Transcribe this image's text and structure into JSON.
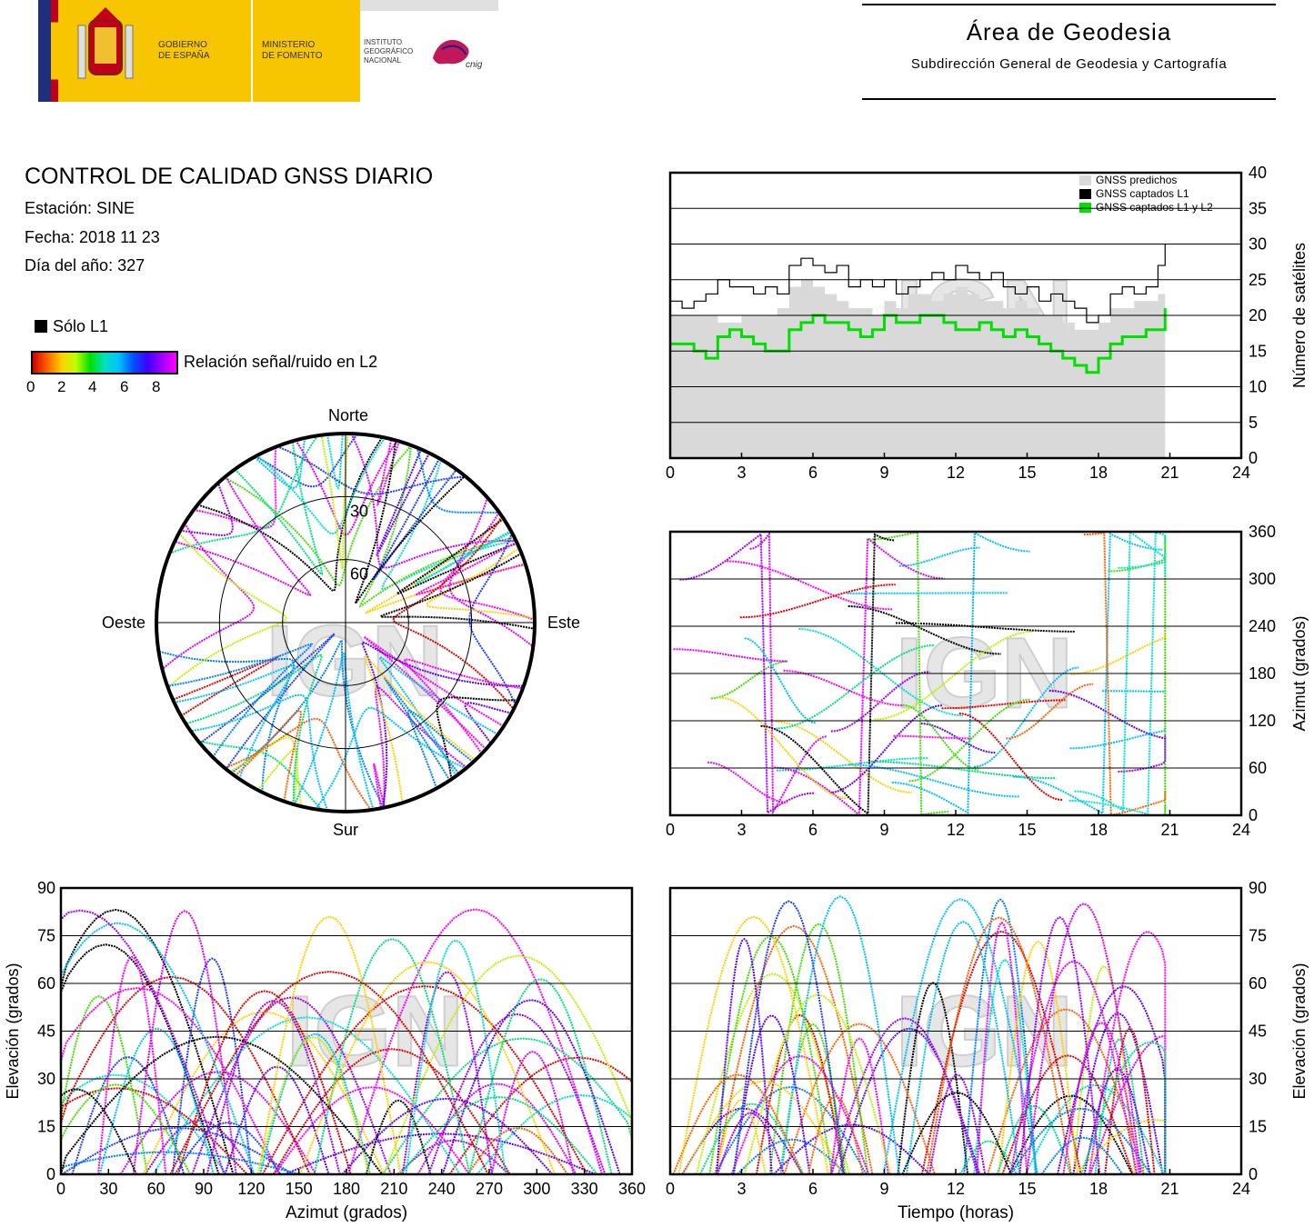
{
  "header": {
    "gov_text": [
      "GOBIERNO",
      "DE ESPAÑA"
    ],
    "ministry_text": [
      "MINISTERIO",
      "DE FOMENTO"
    ],
    "institute_text": [
      "INSTITUTO",
      "GEOGRÁFICO",
      "NACIONAL"
    ],
    "cnig_mark": "cnig",
    "area_title": "Área de Geodesia",
    "area_subtitle": "Subdirección General de Geodesia y Cartografía"
  },
  "report": {
    "title": "CONTROL DE CALIDAD GNSS DIARIO",
    "station": "Estación: SINE",
    "date": "Fecha: 2018 11 23",
    "doy": "Día del año: 327"
  },
  "legend": {
    "l1_only": "Sólo L1",
    "snr_label": "Relación señal/ruido en L2",
    "snr_ticks": [
      "0",
      "2",
      "4",
      "6",
      "8"
    ]
  },
  "watermark": "IGN",
  "chart_data": [
    {
      "id": "satellite-count",
      "type": "line",
      "ylabel": "Número de satélites",
      "xlim": [
        0,
        24
      ],
      "ylim": [
        0,
        40
      ],
      "x_ticks": [
        "0",
        "3",
        "6",
        "9",
        "12",
        "15",
        "18",
        "21",
        "24"
      ],
      "y_ticks": [
        "0",
        "5",
        "10",
        "15",
        "20",
        "25",
        "30",
        "35",
        "40"
      ],
      "legend_position": "top-right",
      "series": [
        {
          "name": "GNSS predichos",
          "color": "#d9d9d9",
          "x": [
            0,
            1,
            2,
            3,
            4,
            4.5,
            5,
            5.5,
            6,
            6.5,
            7,
            7.5,
            8,
            8.5,
            9,
            9.5,
            10,
            10.5,
            11,
            11.5,
            12,
            12.5,
            13,
            13.5,
            14,
            14.5,
            15,
            15.5,
            16,
            16.5,
            17,
            17.5,
            18,
            18.5,
            19,
            19.5,
            20,
            20.5,
            20.8
          ],
          "y": [
            20,
            20,
            19,
            20,
            20,
            21,
            24,
            25,
            24,
            23,
            22,
            21,
            21,
            20,
            22,
            21,
            23,
            23,
            22,
            23,
            24,
            23,
            22,
            22,
            21,
            22,
            21,
            20,
            20,
            19,
            18,
            18,
            19,
            21,
            21,
            22,
            22,
            23,
            23
          ]
        },
        {
          "name": "GNSS captados L1",
          "color": "#000000",
          "x": [
            0,
            0.5,
            1,
            1.5,
            2,
            2.5,
            3,
            3.5,
            4,
            4.5,
            5,
            5.5,
            6,
            6.5,
            7,
            7.5,
            8,
            8.5,
            9,
            9.5,
            10,
            10.5,
            11,
            11.5,
            12,
            12.5,
            13,
            13.5,
            14,
            14.5,
            15,
            15.5,
            16,
            16.5,
            17,
            17.5,
            18,
            18.5,
            19,
            19.5,
            20,
            20.5,
            20.8
          ],
          "y": [
            22,
            21,
            22,
            23,
            25,
            24,
            24,
            23,
            24,
            23,
            27,
            28,
            27,
            26,
            27,
            24,
            25,
            24,
            25,
            23,
            24,
            25,
            26,
            25,
            27,
            26,
            25,
            26,
            24,
            23,
            24,
            22,
            23,
            22,
            21,
            19,
            20,
            23,
            24,
            23,
            24,
            27,
            30
          ]
        },
        {
          "name": "GNSS captados L1 y L2",
          "color": "#00e000",
          "x": [
            0,
            0.5,
            1,
            1.5,
            2,
            2.5,
            3,
            3.5,
            4,
            4.5,
            5,
            5.5,
            6,
            6.5,
            7,
            7.5,
            8,
            8.5,
            9,
            9.5,
            10,
            10.5,
            11,
            11.5,
            12,
            12.5,
            13,
            13.5,
            14,
            14.5,
            15,
            15.5,
            16,
            16.5,
            17,
            17.5,
            18,
            18.5,
            19,
            19.5,
            20,
            20.5,
            20.8
          ],
          "y": [
            16,
            16,
            15,
            14,
            17,
            18,
            17,
            16,
            15,
            15,
            18,
            19,
            20,
            19,
            19,
            18,
            17,
            18,
            20,
            19,
            19,
            20,
            20,
            19,
            18,
            18,
            19,
            18,
            17,
            18,
            17,
            16,
            15,
            14,
            13,
            12,
            14,
            16,
            17,
            17,
            18,
            18,
            21
          ]
        }
      ]
    },
    {
      "id": "azimuth-time",
      "type": "scatter",
      "ylabel": "Azimut (grados)",
      "xlim": [
        0,
        24
      ],
      "ylim": [
        0,
        360
      ],
      "x_ticks": [
        "0",
        "3",
        "6",
        "9",
        "12",
        "15",
        "18",
        "21",
        "24"
      ],
      "y_ticks": [
        "0",
        "60",
        "120",
        "180",
        "240",
        "300",
        "360"
      ]
    },
    {
      "id": "skyplot",
      "type": "scatter",
      "directions": {
        "north": "Norte",
        "south": "Sur",
        "east": "Este",
        "west": "Oeste"
      },
      "rings": [
        "30",
        "60"
      ]
    },
    {
      "id": "elevation-azimuth",
      "type": "scatter",
      "xlabel": "Azimut (grados)",
      "ylabel": "Elevación (grados)",
      "xlim": [
        0,
        360
      ],
      "ylim": [
        0,
        90
      ],
      "x_ticks": [
        "0",
        "30",
        "60",
        "90",
        "120",
        "150",
        "180",
        "210",
        "240",
        "270",
        "300",
        "330",
        "360"
      ],
      "y_ticks": [
        "0",
        "15",
        "30",
        "45",
        "60",
        "75",
        "90"
      ]
    },
    {
      "id": "elevation-time",
      "type": "scatter",
      "xlabel": "Tiempo (horas)",
      "ylabel": "Elevación (grados)",
      "xlim": [
        0,
        24
      ],
      "ylim": [
        0,
        90
      ],
      "x_ticks": [
        "0",
        "3",
        "6",
        "9",
        "12",
        "15",
        "18",
        "21",
        "24"
      ],
      "y_ticks": [
        "0",
        "15",
        "30",
        "45",
        "60",
        "75",
        "90"
      ]
    }
  ]
}
